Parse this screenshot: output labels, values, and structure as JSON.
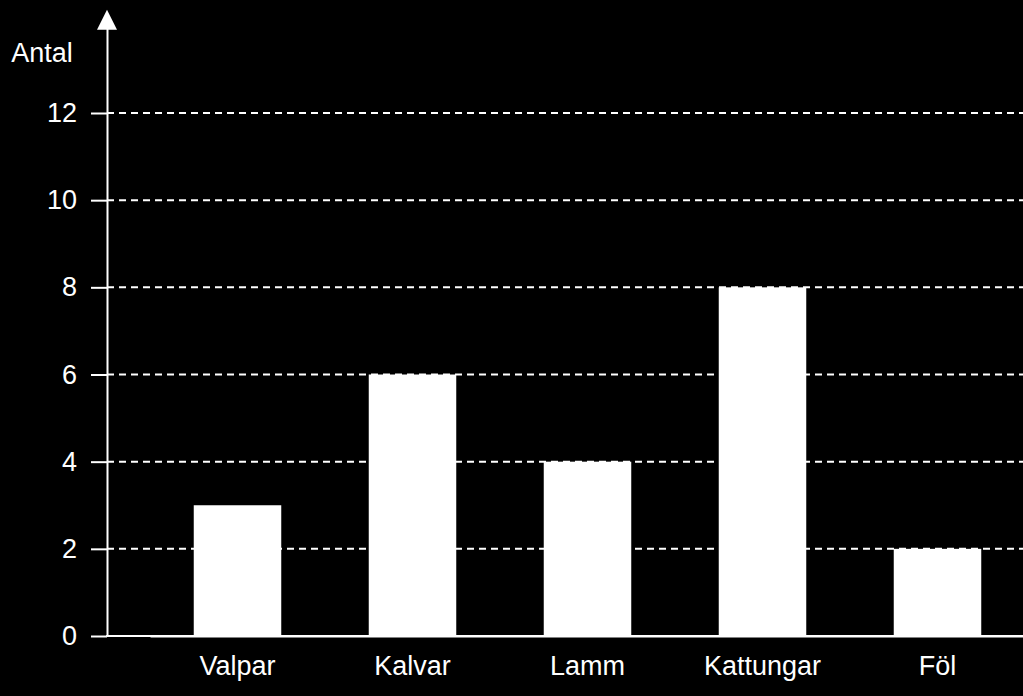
{
  "chart_data": {
    "type": "bar",
    "y_label": "Antal",
    "categories": [
      "Valpar",
      "Kalvar",
      "Lamm",
      "Kattungar",
      "Föl"
    ],
    "values": [
      3,
      6,
      4,
      8,
      2
    ],
    "color": "#ffffff",
    "ylim": [
      0,
      14
    ],
    "yticks": [
      0,
      2,
      4,
      6,
      8,
      10,
      12
    ],
    "grid": true
  }
}
